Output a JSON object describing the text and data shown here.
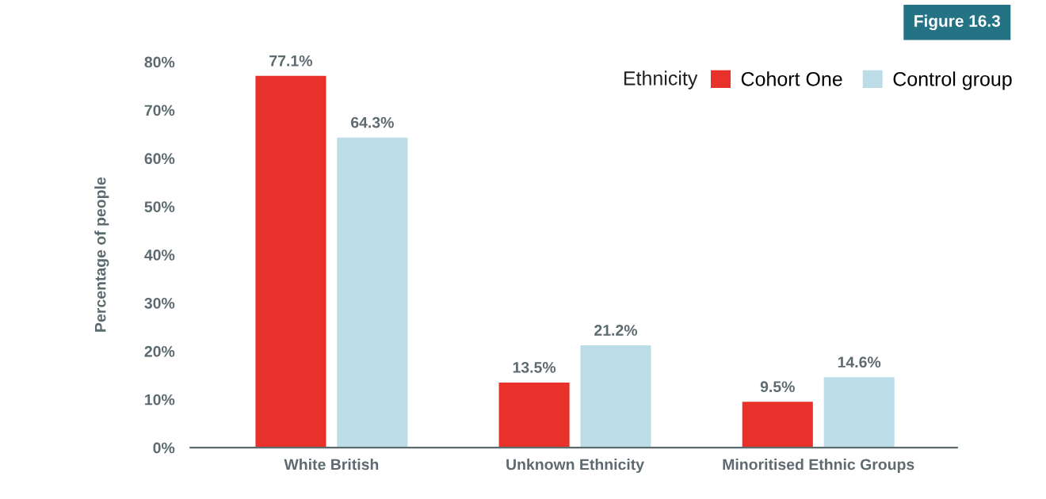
{
  "chart_data": {
    "type": "bar",
    "ylabel": "Percentage of people",
    "legend_title": "Ethnicity",
    "annotations": [
      "Figure 16.3"
    ],
    "categories": [
      "White British",
      "Unknown Ethnicity",
      "Minoritised Ethnic Groups"
    ],
    "series": [
      {
        "name": "Cohort One",
        "color": "#e8312a",
        "values": [
          77.1,
          13.5,
          9.5
        ]
      },
      {
        "name": "Control group",
        "color": "#bcdde8",
        "values": [
          64.3,
          21.2,
          14.6
        ]
      }
    ],
    "ylim": [
      0,
      80
    ],
    "yticks": [
      {
        "value": 0,
        "label": "0%"
      },
      {
        "value": 10,
        "label": "10%"
      },
      {
        "value": 20,
        "label": "20%"
      },
      {
        "value": 30,
        "label": "30%"
      },
      {
        "value": 40,
        "label": "40%"
      },
      {
        "value": 50,
        "label": "50%"
      },
      {
        "value": 60,
        "label": "60%"
      },
      {
        "value": 70,
        "label": "70%"
      },
      {
        "value": 80,
        "label": "80%"
      }
    ],
    "value_labels": [
      [
        "77.1%",
        "13.5%",
        "9.5%"
      ],
      [
        "64.3%",
        "21.2%",
        "14.6%"
      ]
    ],
    "grid": false,
    "legend": "top right"
  }
}
